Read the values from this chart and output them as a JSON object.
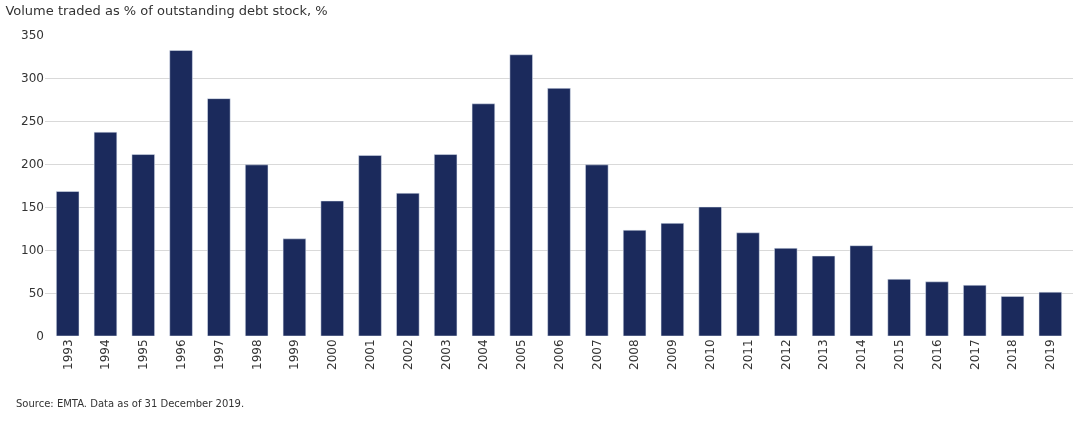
{
  "chart_data": {
    "type": "bar",
    "title": "Volume traded as % of outstanding debt stock, %",
    "categories": [
      "1993",
      "1994",
      "1995",
      "1996",
      "1997",
      "1998",
      "1999",
      "2000",
      "2001",
      "2002",
      "2003",
      "2004",
      "2005",
      "2006",
      "2007",
      "2008",
      "2009",
      "2010",
      "2011",
      "2012",
      "2013",
      "2014",
      "2015",
      "2016",
      "2017",
      "2018",
      "2019"
    ],
    "values": [
      168,
      237,
      211,
      332,
      276,
      199,
      113,
      157,
      210,
      166,
      211,
      270,
      327,
      288,
      199,
      123,
      131,
      150,
      120,
      102,
      93,
      105,
      66,
      63,
      59,
      46,
      51
    ],
    "color": "#1b2a5c",
    "ylim": [
      0,
      350
    ],
    "yticks": [
      0,
      50,
      100,
      150,
      200,
      250,
      300,
      350
    ],
    "grid": "y",
    "annotations": [
      "Source: EMTA. Data as of 31 December 2019."
    ]
  }
}
